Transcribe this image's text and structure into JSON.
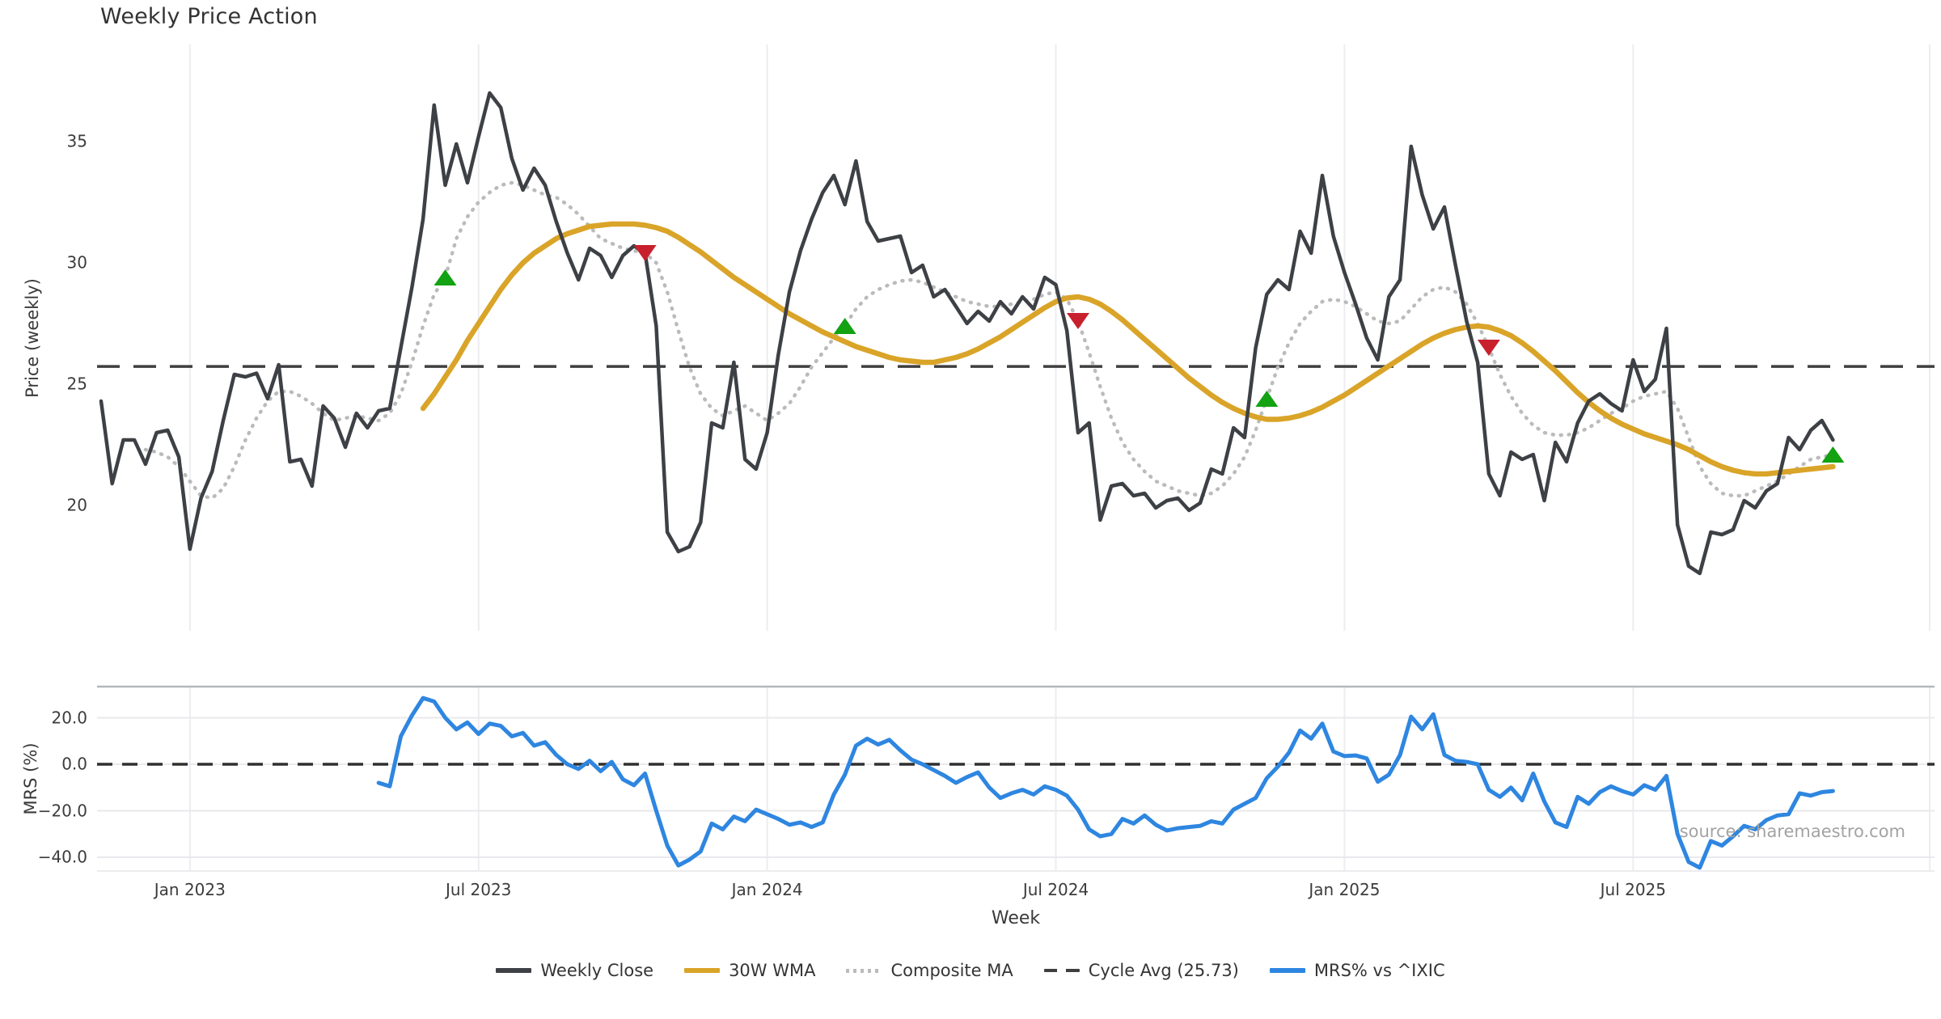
{
  "source_text": "source: sharemaestro.com",
  "chart_data": {
    "type": "line",
    "title": "Weekly Price Action",
    "weeks_total": 157,
    "x_axis": {
      "label": "Week",
      "ticks": [
        {
          "week": 8,
          "label": "Jan 2023"
        },
        {
          "week": 34,
          "label": "Jul 2023"
        },
        {
          "week": 60,
          "label": "Jan 2024"
        },
        {
          "week": 86,
          "label": "Jul 2024"
        },
        {
          "week": 112,
          "label": "Jan 2025"
        },
        {
          "week": 138,
          "label": "Jul 2025"
        }
      ]
    },
    "colors": {
      "close": "#3d4045",
      "wma": "#d9a428",
      "composite": "#bbbbbb",
      "cycle": "#3f3f3f",
      "mrs": "#2e86e0",
      "buy": "#12a212",
      "sell": "#c8202c",
      "vgrid": "#ededf1",
      "hgrid": "#e9e9ed",
      "spine": "#b3b7bb"
    },
    "panels": [
      {
        "name": "price",
        "ylabel": "Price (weekly)",
        "ylim": [
          14.8,
          39.0
        ],
        "yticks": [
          {
            "value": 35,
            "label": "35"
          },
          {
            "value": 30,
            "label": "30"
          },
          {
            "value": 25,
            "label": "25"
          },
          {
            "value": 20,
            "label": "20"
          }
        ],
        "cycle_avg": 25.73,
        "series": [
          {
            "name": "Weekly Close",
            "style": "solid",
            "start_week": 0,
            "values": [
              24.3,
              20.9,
              22.7,
              22.7,
              21.7,
              23.0,
              23.1,
              22.0,
              18.2,
              20.3,
              21.4,
              23.5,
              25.4,
              25.3,
              25.45,
              24.4,
              25.8,
              21.8,
              21.9,
              20.8,
              24.1,
              23.6,
              22.4,
              23.8,
              23.2,
              23.9,
              24.0,
              26.5,
              29.0,
              31.8,
              36.5,
              33.2,
              34.9,
              33.3,
              35.2,
              37.0,
              36.4,
              34.3,
              33.0,
              33.9,
              33.2,
              31.7,
              30.4,
              29.3,
              30.6,
              30.3,
              29.4,
              30.3,
              30.7,
              30.4,
              27.4,
              18.9,
              18.1,
              18.3,
              19.3,
              23.4,
              23.2,
              25.9,
              21.9,
              21.5,
              23.0,
              26.2,
              28.8,
              30.5,
              31.8,
              32.9,
              33.6,
              32.4,
              34.2,
              31.7,
              30.9,
              31.0,
              31.1,
              29.6,
              29.9,
              28.6,
              28.9,
              28.2,
              27.5,
              28.0,
              27.6,
              28.4,
              27.9,
              28.6,
              28.1,
              29.4,
              29.1,
              27.2,
              23.0,
              23.4,
              19.4,
              20.8,
              20.9,
              20.4,
              20.5,
              19.9,
              20.2,
              20.3,
              19.8,
              20.1,
              21.5,
              21.3,
              23.2,
              22.8,
              26.5,
              28.7,
              29.3,
              28.9,
              31.3,
              30.4,
              33.6,
              31.1,
              29.6,
              28.3,
              26.9,
              26.0,
              28.6,
              29.3,
              34.8,
              32.8,
              31.4,
              32.3,
              29.9,
              27.6,
              25.9,
              21.3,
              20.4,
              22.2,
              21.9,
              22.1,
              20.2,
              22.6,
              21.8,
              23.4,
              24.3,
              24.6,
              24.2,
              23.9,
              26.0,
              24.7,
              25.2,
              27.3,
              19.2,
              17.5,
              17.2,
              18.9,
              18.8,
              19.0,
              20.2,
              19.9,
              20.6,
              20.9,
              22.8,
              22.3,
              23.1,
              23.5,
              22.7
            ]
          },
          {
            "name": "30W WMA",
            "style": "solid",
            "start_week": 29,
            "values": [
              24.0,
              24.6,
              25.3,
              26.0,
              26.8,
              27.5,
              28.2,
              28.9,
              29.5,
              30.0,
              30.4,
              30.7,
              31.0,
              31.2,
              31.35,
              31.5,
              31.55,
              31.6,
              31.6,
              31.6,
              31.55,
              31.45,
              31.3,
              31.05,
              30.75,
              30.45,
              30.1,
              29.75,
              29.4,
              29.1,
              28.8,
              28.5,
              28.2,
              27.9,
              27.65,
              27.4,
              27.15,
              26.95,
              26.75,
              26.55,
              26.4,
              26.25,
              26.1,
              26.0,
              25.95,
              25.9,
              25.9,
              26.0,
              26.1,
              26.25,
              26.45,
              26.7,
              26.95,
              27.25,
              27.55,
              27.85,
              28.15,
              28.4,
              28.55,
              28.6,
              28.5,
              28.3,
              28.0,
              27.65,
              27.25,
              26.85,
              26.45,
              26.05,
              25.65,
              25.25,
              24.9,
              24.55,
              24.25,
              24.0,
              23.8,
              23.65,
              23.55,
              23.55,
              23.6,
              23.7,
              23.85,
              24.05,
              24.3,
              24.55,
              24.85,
              25.15,
              25.45,
              25.75,
              26.05,
              26.35,
              26.65,
              26.9,
              27.1,
              27.25,
              27.35,
              27.4,
              27.35,
              27.2,
              27.0,
              26.7,
              26.35,
              25.95,
              25.55,
              25.1,
              24.65,
              24.25,
              23.9,
              23.6,
              23.35,
              23.15,
              22.95,
              22.8,
              22.65,
              22.5,
              22.3,
              22.05,
              21.8,
              21.6,
              21.45,
              21.35,
              21.3,
              21.3,
              21.35,
              21.4,
              21.45,
              21.5,
              21.55,
              21.6
            ]
          },
          {
            "name": "Composite MA",
            "style": "dotted",
            "start_week": 4,
            "values": [
              22.3,
              22.2,
              22.0,
              21.6,
              21.0,
              20.4,
              20.3,
              20.7,
              21.6,
              22.7,
              23.6,
              24.3,
              24.7,
              24.7,
              24.5,
              24.2,
              23.8,
              23.5,
              23.6,
              23.7,
              23.6,
              23.5,
              23.8,
              24.6,
              25.9,
              27.4,
              28.7,
              29.4,
              31.0,
              31.9,
              32.5,
              32.9,
              33.2,
              33.3,
              33.2,
              33.0,
              32.8,
              32.7,
              32.4,
              32.0,
              31.5,
              31.0,
              30.8,
              30.6,
              30.5,
              30.4,
              30.0,
              28.8,
              27.2,
              25.7,
              24.6,
              24.0,
              23.7,
              23.9,
              24.1,
              23.8,
              23.5,
              23.8,
              24.2,
              24.9,
              25.7,
              26.3,
              26.9,
              27.4,
              28.1,
              28.6,
              28.9,
              29.1,
              29.25,
              29.3,
              29.2,
              29.0,
              28.8,
              28.6,
              28.4,
              28.3,
              28.2,
              28.2,
              28.3,
              28.4,
              28.5,
              28.7,
              28.8,
              28.5,
              27.6,
              26.3,
              24.9,
              23.6,
              22.6,
              21.9,
              21.4,
              21.0,
              20.8,
              20.6,
              20.5,
              20.4,
              20.5,
              20.8,
              21.3,
              22.0,
              23.1,
              24.4,
              25.7,
              26.7,
              27.5,
              28.0,
              28.4,
              28.5,
              28.4,
              28.2,
              27.9,
              27.6,
              27.5,
              27.6,
              28.1,
              28.6,
              28.9,
              29.0,
              28.8,
              28.3,
              27.5,
              26.5,
              25.4,
              24.5,
              23.8,
              23.3,
              23.0,
              22.9,
              22.9,
              23.0,
              23.2,
              23.5,
              23.8,
              24.0,
              24.3,
              24.5,
              24.6,
              24.7,
              24.0,
              22.8,
              21.6,
              20.9,
              20.5,
              20.4,
              20.4,
              20.6,
              20.8,
              21.0,
              21.3,
              21.6,
              21.9,
              22.0,
              22.1
            ]
          }
        ],
        "markers": [
          {
            "week": 31,
            "value": 29.4,
            "dir": "up"
          },
          {
            "week": 49,
            "value": 30.4,
            "dir": "down"
          },
          {
            "week": 67,
            "value": 27.4,
            "dir": "up"
          },
          {
            "week": 88,
            "value": 27.6,
            "dir": "down"
          },
          {
            "week": 105,
            "value": 24.4,
            "dir": "up"
          },
          {
            "week": 125,
            "value": 26.5,
            "dir": "down"
          },
          {
            "week": 156,
            "value": 22.1,
            "dir": "up"
          }
        ]
      },
      {
        "name": "mrs",
        "ylabel": "MRS (%)",
        "ylim": [
          -45.9,
          33.4
        ],
        "yticks": [
          {
            "value": 20,
            "label": "20.0"
          },
          {
            "value": 0,
            "label": "0.0"
          },
          {
            "value": -20,
            "label": "−20.0"
          },
          {
            "value": -40,
            "label": "−40.0"
          }
        ],
        "zero_line_dashed": true,
        "series": [
          {
            "name": "MRS% vs ^IXIC",
            "style": "solid",
            "start_week": 25,
            "values": [
              -8,
              -9.5,
              12,
              21,
              28.5,
              27,
              20,
              15,
              18,
              13,
              17.5,
              16.5,
              12,
              13.5,
              8,
              9.5,
              4,
              0,
              -2,
              1.5,
              -3,
              1,
              -6.5,
              -9,
              -4,
              -20,
              -35,
              -43.5,
              -41,
              -37.5,
              -25.5,
              -28,
              -22.5,
              -24.5,
              -19.5,
              -21.5,
              -23.5,
              -26,
              -25,
              -27,
              -25,
              -13,
              -4.5,
              8,
              11,
              8.5,
              10.5,
              6,
              2,
              0,
              -2.5,
              -5,
              -8,
              -5.5,
              -3.5,
              -10,
              -14.5,
              -12.5,
              -11,
              -13,
              -9.5,
              -11,
              -13.5,
              -19.5,
              -28,
              -31,
              -30,
              -23.5,
              -25.5,
              -22,
              -26,
              -28.5,
              -27.5,
              -27,
              -26.5,
              -24.5,
              -25.5,
              -19.5,
              -17,
              -14.5,
              -6,
              -1,
              5,
              14.5,
              11,
              17.5,
              5.5,
              3.5,
              3.8,
              2.5,
              -7.5,
              -4.5,
              4,
              20.5,
              15,
              21.5,
              4,
              1.5,
              1,
              0,
              -11,
              -14,
              -10,
              -15.5,
              -4,
              -16,
              -25,
              -27,
              -14,
              -17,
              -12,
              -9.5,
              -11.5,
              -13,
              -9,
              -11,
              -5,
              -30,
              -42,
              -44.5,
              -33,
              -35,
              -31,
              -26.5,
              -28,
              -24,
              -22,
              -21.5,
              -12.5,
              -13.5,
              -12,
              -11.5
            ]
          }
        ]
      }
    ],
    "legend": [
      {
        "label": "Weekly Close",
        "style": "solid",
        "color": "#3d4045"
      },
      {
        "label": "30W WMA",
        "style": "solid",
        "color": "#d9a428"
      },
      {
        "label": "Composite MA",
        "style": "dotted",
        "color": "#bbbbbb"
      },
      {
        "label": "Cycle Avg (25.73)",
        "style": "dashed",
        "color": "#3f3f3f"
      },
      {
        "label": "MRS% vs ^IXIC",
        "style": "solid",
        "color": "#2e86e0"
      }
    ]
  }
}
